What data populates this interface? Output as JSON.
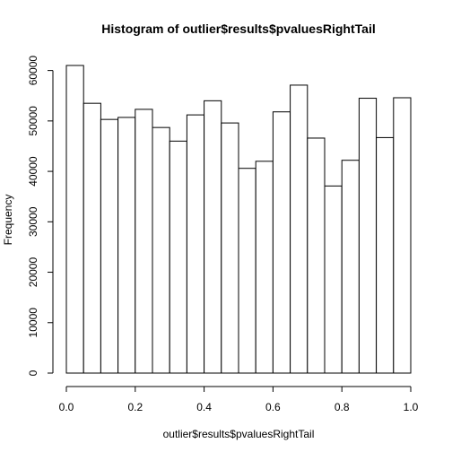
{
  "chart_data": {
    "type": "bar",
    "title": "Histogram of outlier$results$pvaluesRightTail",
    "xlabel": "outlier$results$pvaluesRightTail",
    "ylabel": "Frequency",
    "bin_width": 0.05,
    "bin_starts": [
      0.0,
      0.05,
      0.1,
      0.15,
      0.2,
      0.25,
      0.3,
      0.35,
      0.4,
      0.45,
      0.5,
      0.55,
      0.6,
      0.65,
      0.7,
      0.75,
      0.8,
      0.85,
      0.9,
      0.95
    ],
    "values": [
      61000,
      53500,
      50300,
      50700,
      52300,
      48700,
      46000,
      51200,
      54000,
      49600,
      40600,
      42000,
      51800,
      57100,
      46600,
      37100,
      42200,
      54500,
      46700,
      54600
    ],
    "xlim": [
      0,
      1
    ],
    "ylim": [
      0,
      61000
    ],
    "x_ticks": [
      0.0,
      0.2,
      0.4,
      0.6,
      0.8,
      1.0
    ],
    "x_tick_labels": [
      "0.0",
      "0.2",
      "0.4",
      "0.6",
      "0.8",
      "1.0"
    ],
    "y_ticks": [
      0,
      10000,
      20000,
      30000,
      40000,
      50000,
      60000
    ],
    "y_tick_labels": [
      "0",
      "10000",
      "20000",
      "30000",
      "40000",
      "50000",
      "60000"
    ],
    "grid": false,
    "bar_fill": "#ffffff",
    "bar_stroke": "#000000"
  }
}
